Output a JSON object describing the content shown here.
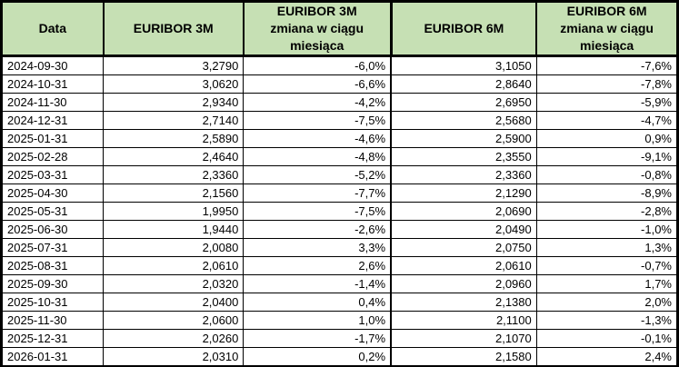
{
  "colors": {
    "header_bg": "#c6e0b4",
    "border": "#000000",
    "row_bg": "#ffffff",
    "text": "#000000"
  },
  "table": {
    "columns": [
      {
        "label": "Data",
        "sublabel": ""
      },
      {
        "label": "EURIBOR 3M",
        "sublabel": ""
      },
      {
        "label": "EURIBOR 3M",
        "sublabel": "zmiana w ciągu miesiąca"
      },
      {
        "label": "EURIBOR 6M",
        "sublabel": ""
      },
      {
        "label": "EURIBOR 6M",
        "sublabel": "zmiana w ciągu miesiąca"
      }
    ],
    "rows": [
      [
        "2024-09-30",
        "3,2790",
        "-6,0%",
        "3,1050",
        "-7,6%"
      ],
      [
        "2024-10-31",
        "3,0620",
        "-6,6%",
        "2,8640",
        "-7,8%"
      ],
      [
        "2024-11-30",
        "2,9340",
        "-4,2%",
        "2,6950",
        "-5,9%"
      ],
      [
        "2024-12-31",
        "2,7140",
        "-7,5%",
        "2,5680",
        "-4,7%"
      ],
      [
        "2025-01-31",
        "2,5890",
        "-4,6%",
        "2,5900",
        "0,9%"
      ],
      [
        "2025-02-28",
        "2,4640",
        "-4,8%",
        "2,3550",
        "-9,1%"
      ],
      [
        "2025-03-31",
        "2,3360",
        "-5,2%",
        "2,3360",
        "-0,8%"
      ],
      [
        "2025-04-30",
        "2,1560",
        "-7,7%",
        "2,1290",
        "-8,9%"
      ],
      [
        "2025-05-31",
        "1,9950",
        "-7,5%",
        "2,0690",
        "-2,8%"
      ],
      [
        "2025-06-30",
        "1,9440",
        "-2,6%",
        "2,0490",
        "-1,0%"
      ],
      [
        "2025-07-31",
        "2,0080",
        "3,3%",
        "2,0750",
        "1,3%"
      ],
      [
        "2025-08-31",
        "2,0610",
        "2,6%",
        "2,0610",
        "-0,7%"
      ],
      [
        "2025-09-30",
        "2,0320",
        "-1,4%",
        "2,0960",
        "1,7%"
      ],
      [
        "2025-10-31",
        "2,0400",
        "0,4%",
        "2,1380",
        "2,0%"
      ],
      [
        "2025-11-30",
        "2,0600",
        "1,0%",
        "2,1100",
        "-1,3%"
      ],
      [
        "2025-12-31",
        "2,0260",
        "-1,7%",
        "2,1070",
        "-0,1%"
      ],
      [
        "2026-01-31",
        "2,0310",
        "0,2%",
        "2,1580",
        "2,4%"
      ]
    ]
  }
}
